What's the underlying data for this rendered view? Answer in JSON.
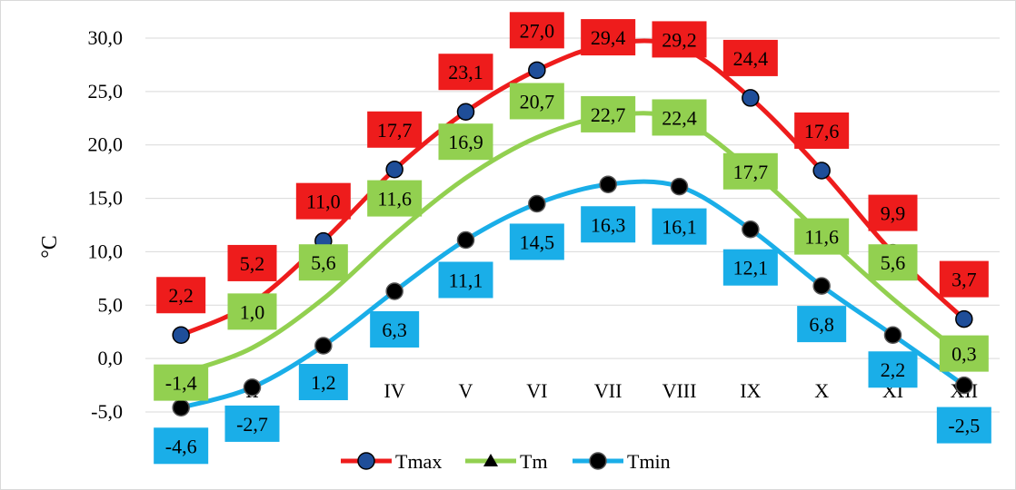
{
  "chart_data": {
    "type": "line",
    "title": "",
    "xlabel": "",
    "ylabel": "°C",
    "categories": [
      "I",
      "II",
      "III",
      "IV",
      "V",
      "VI",
      "VII",
      "VIII",
      "IX",
      "X",
      "XI",
      "XII"
    ],
    "ylim": [
      -5.0,
      30.0
    ],
    "yticks": [
      "-5,0",
      "0,0",
      "5,0",
      "10,0",
      "15,0",
      "20,0",
      "25,0",
      "30,0"
    ],
    "grid": true,
    "legend_position": "bottom",
    "series": [
      {
        "name": "Tmax",
        "color": "#ee1c1c",
        "label_bg": "#ee1c1c",
        "marker": "circle-blue",
        "values": [
          2.2,
          5.2,
          11.0,
          17.7,
          23.1,
          27.0,
          29.4,
          29.2,
          24.4,
          17.6,
          9.9,
          3.7
        ],
        "labels": [
          "2,2",
          "5,2",
          "11,0",
          "17,7",
          "23,1",
          "27,0",
          "29,4",
          "29,2",
          "24,4",
          "17,6",
          "9,9",
          "3,7"
        ]
      },
      {
        "name": "Tm",
        "color": "#92d050",
        "label_bg": "#92d050",
        "marker": "triangle",
        "values": [
          -1.4,
          1.0,
          5.6,
          11.6,
          16.9,
          20.7,
          22.7,
          22.4,
          17.7,
          11.6,
          5.6,
          0.3
        ],
        "labels": [
          "-1,4",
          "1,0",
          "5,6",
          "11,6",
          "16,9",
          "20,7",
          "22,7",
          "22,4",
          "17,7",
          "11,6",
          "5,6",
          "0,3"
        ]
      },
      {
        "name": "Tmin",
        "color": "#1aaee8",
        "label_bg": "#1aaee8",
        "marker": "circle-black",
        "values": [
          -4.6,
          -2.7,
          1.2,
          6.3,
          11.1,
          14.5,
          16.3,
          16.1,
          12.1,
          6.8,
          2.2,
          -2.5
        ],
        "labels": [
          "-4,6",
          "-2,7",
          "1,2",
          "6,3",
          "11,1",
          "14,5",
          "16,3",
          "16,1",
          "12,1",
          "6,8",
          "2,2",
          "-2,5"
        ]
      }
    ]
  }
}
